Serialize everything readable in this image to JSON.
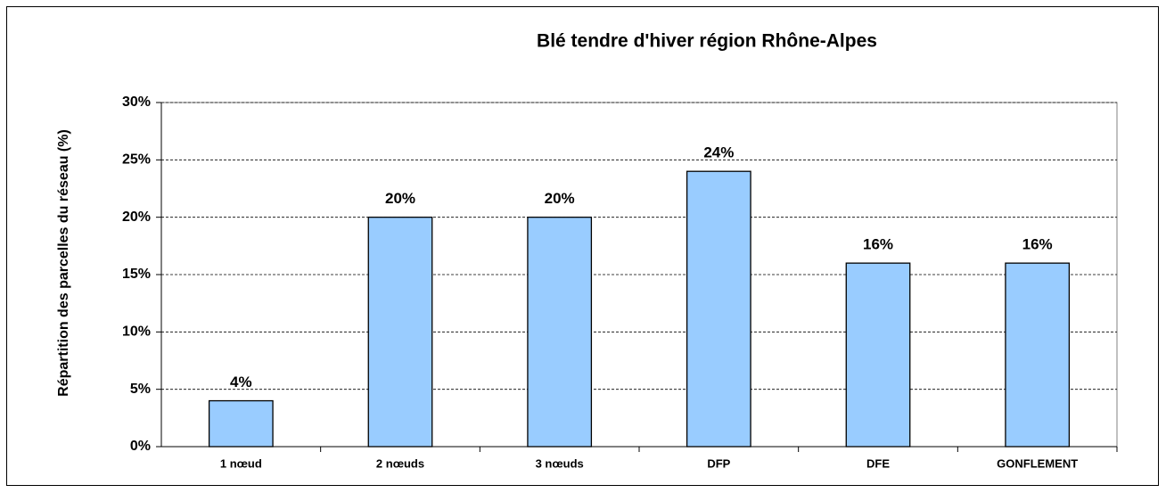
{
  "chart_data": {
    "type": "bar",
    "title": "Blé tendre d'hiver région Rhône-Alpes",
    "y_axis_label": "Répartition des parcelles du réseau (%)",
    "categories": [
      "1 nœud",
      "2 nœuds",
      "3 nœuds",
      "DFP",
      "DFE",
      "GONFLEMENT"
    ],
    "values": [
      4,
      20,
      20,
      24,
      16,
      16
    ],
    "value_labels": [
      "4%",
      "20%",
      "20%",
      "24%",
      "16%",
      "16%"
    ],
    "color": "#99ccff",
    "ylim": [
      0,
      30
    ],
    "yticks": [
      {
        "value": 0,
        "label": "0%"
      },
      {
        "value": 5,
        "label": "5%"
      },
      {
        "value": 10,
        "label": "10%"
      },
      {
        "value": 15,
        "label": "15%"
      },
      {
        "value": 20,
        "label": "20%"
      },
      {
        "value": 25,
        "label": "25%"
      },
      {
        "value": 30,
        "label": "30%"
      }
    ],
    "grid": true
  }
}
